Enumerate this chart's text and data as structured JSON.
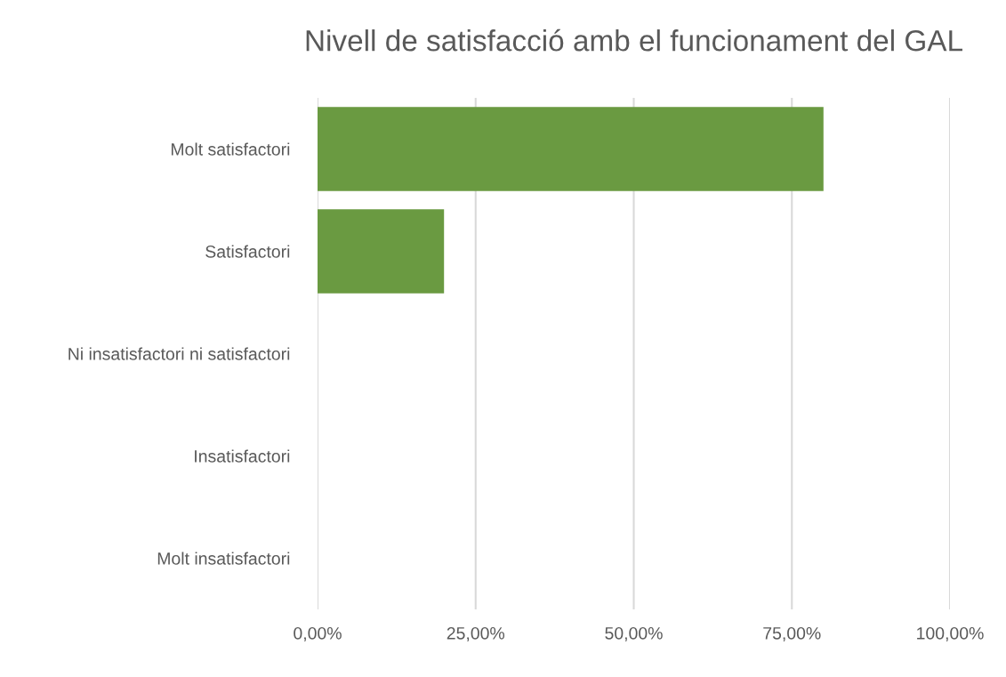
{
  "chart_data": {
    "type": "bar",
    "orientation": "horizontal",
    "title": "Nivell de satisfacció amb el funcionament del GAL",
    "categories": [
      "Molt satisfactori",
      "Satisfactori",
      "Ni insatisfactori ni satisfactori",
      "Insatisfactori",
      "Molt insatisfactori"
    ],
    "values": [
      80,
      20,
      0,
      0,
      0
    ],
    "color": "#6a9a41",
    "xlim": [
      0,
      100
    ],
    "xticks": [
      {
        "value": 0,
        "label": "0,00%"
      },
      {
        "value": 25,
        "label": "25,00%"
      },
      {
        "value": 50,
        "label": "50,00%"
      },
      {
        "value": 75,
        "label": "75,00%"
      },
      {
        "value": 100,
        "label": "100,00%"
      }
    ],
    "grid": "x",
    "legend": false
  }
}
